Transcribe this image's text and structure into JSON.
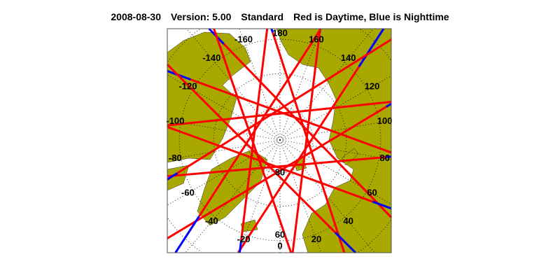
{
  "header": {
    "date": "2008-08-30",
    "version": "Version: 5.00",
    "product": "Standard",
    "legend_note": "Red is Daytime, Blue is Nighttime"
  },
  "map": {
    "projection": "north polar stereographic",
    "land_color": "#a8a800",
    "ocean_color": "#ffffff",
    "day_color": "#ff0000",
    "night_color": "#0000ff",
    "graticule": {
      "latitudes": [
        80,
        70,
        60,
        50,
        40,
        30
      ],
      "longitude_step": 20,
      "style": "dotted"
    },
    "longitude_labels": [
      {
        "lon": 180,
        "text": "180"
      },
      {
        "lon": -160,
        "text": "-160"
      },
      {
        "lon": 160,
        "text": "160"
      },
      {
        "lon": -140,
        "text": "-140"
      },
      {
        "lon": 140,
        "text": "140"
      },
      {
        "lon": -120,
        "text": "-120"
      },
      {
        "lon": 120,
        "text": "120"
      },
      {
        "lon": -100,
        "text": "-100"
      },
      {
        "lon": 100,
        "text": "100"
      },
      {
        "lon": -80,
        "text": "-80"
      },
      {
        "lon": 80,
        "text": "80"
      },
      {
        "lon": -60,
        "text": "-60"
      },
      {
        "lon": 60,
        "text": "60"
      },
      {
        "lon": -40,
        "text": "-40"
      },
      {
        "lon": 40,
        "text": "40"
      },
      {
        "lon": -20,
        "text": "-20"
      },
      {
        "lon": 20,
        "text": "20"
      },
      {
        "lon": 0,
        "text": "0"
      }
    ],
    "latitude_labels": [
      {
        "lat": 80,
        "text": "80"
      },
      {
        "lat": 60,
        "text": "60"
      }
    ],
    "orbit_max_latitude": 82,
    "tracks": [
      {
        "lon_at_max_lat": 5,
        "night_side": "end",
        "night_below_lat": 58
      },
      {
        "lon_at_max_lat": 31,
        "night_side": "end",
        "night_below_lat": 57
      },
      {
        "lon_at_max_lat": 57,
        "night_side": "end",
        "night_below_lat": 58
      },
      {
        "lon_at_max_lat": 83,
        "night_side": "end",
        "night_below_lat": 56
      },
      {
        "lon_at_max_lat": 108,
        "night_side": "end",
        "night_below_lat": 58
      },
      {
        "lon_at_max_lat": 134,
        "night_side": "end",
        "night_below_lat": 57
      },
      {
        "lon_at_max_lat": 160,
        "night_side": "end",
        "night_below_lat": 58
      },
      {
        "lon_at_max_lat": -174,
        "night_side": "end",
        "night_below_lat": 56
      },
      {
        "lon_at_max_lat": -148,
        "night_side": "end",
        "night_below_lat": 58
      },
      {
        "lon_at_max_lat": -123,
        "night_side": "end",
        "night_below_lat": 57
      },
      {
        "lon_at_max_lat": -97,
        "night_side": "end",
        "night_below_lat": 58
      },
      {
        "lon_at_max_lat": -71,
        "night_side": "end",
        "night_below_lat": 56
      },
      {
        "lon_at_max_lat": -45,
        "night_side": "end",
        "night_below_lat": 58
      },
      {
        "lon_at_max_lat": -20,
        "night_side": "end",
        "night_below_lat": 57
      }
    ]
  }
}
